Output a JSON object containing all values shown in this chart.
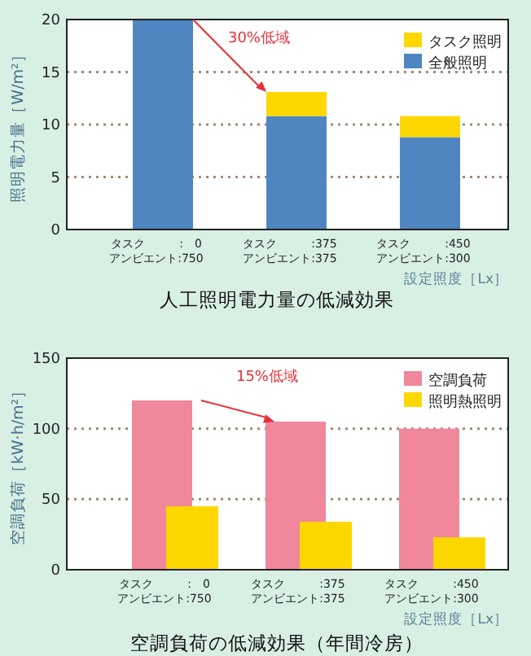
{
  "chart_data": [
    {
      "type": "bar",
      "stacked": true,
      "title": "人工照明電力量の低減効果",
      "ylabel": "照明電力量［W/m²］",
      "xlabel": "設定照度［Lx］",
      "categories": [
        "タスク　　　:　0\nアンビエント:750",
        "タスク　　　:375\nアンビエント:375",
        "タスク　　　:450\nアンビエント:300"
      ],
      "series": [
        {
          "name": "全般照明",
          "color": "#4f86c1",
          "values": [
            20,
            10.8,
            8.8
          ]
        },
        {
          "name": "タスク照明",
          "color": "#ffd700",
          "values": [
            0,
            2.3,
            2.0
          ]
        }
      ],
      "ylim": [
        0,
        20
      ],
      "yticks": [
        0,
        5,
        10,
        15,
        20
      ],
      "grid": "y",
      "legend": "top right",
      "annotations": [
        "30%低域"
      ]
    },
    {
      "type": "bar",
      "title": "空調負荷の低減効果（年間冷房）",
      "ylabel": "空調負荷［kW·h/m²］",
      "xlabel": "設定照度［Lx］",
      "categories": [
        "タスク　　　:　0\nアンビエント:750",
        "タスク　　　:375\nアンビエント:375",
        "タスク　　　:450\nアンビエント:300"
      ],
      "series": [
        {
          "name": "空調負荷",
          "color": "#f0879b",
          "values": [
            120,
            105,
            100
          ]
        },
        {
          "name": "照明熱照明",
          "color": "#ffd700",
          "values": [
            45,
            34,
            23
          ]
        }
      ],
      "ylim": [
        0,
        150
      ],
      "yticks": [
        0,
        50,
        100,
        150
      ],
      "grid": "y",
      "legend": "top right",
      "annotations": [
        "15%低域"
      ]
    }
  ]
}
